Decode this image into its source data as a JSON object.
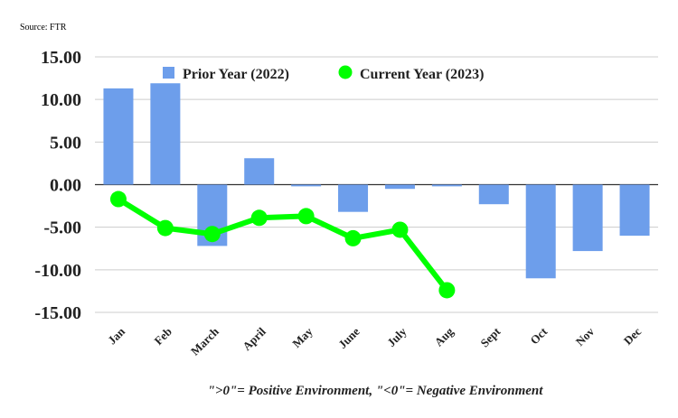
{
  "source": "Source: FTR",
  "footnote": "\">0\"= Positive Environment, \"<0\"= Negative Environment",
  "colors": {
    "bar": "#6d9eeb",
    "line": "#00ff00",
    "grid": "#cccccc",
    "axis": "#333333"
  },
  "chart_data": {
    "type": "bar",
    "categories": [
      "Jan",
      "Feb",
      "March",
      "April",
      "May",
      "June",
      "July",
      "Aug",
      "Sept",
      "Oct",
      "Nov",
      "Dec"
    ],
    "ylim": [
      -15,
      15
    ],
    "yticks": [
      15,
      10,
      5,
      0,
      -5,
      -10,
      -15
    ],
    "ytick_labels": [
      "15.00",
      "10.00",
      "5.00",
      "0.00",
      "-5.00",
      "-10.00",
      "-15.00"
    ],
    "legend_position": "top-center",
    "grid": true,
    "series": [
      {
        "name": "Prior Year (2022)",
        "type": "bar",
        "values": [
          11.3,
          11.9,
          -7.2,
          3.1,
          -0.2,
          -3.2,
          -0.5,
          -0.2,
          -2.3,
          -11.0,
          -7.8,
          -6.0
        ]
      },
      {
        "name": "Current Year (2023)",
        "type": "line",
        "values": [
          -1.7,
          -5.1,
          -5.8,
          -3.9,
          -3.7,
          -6.3,
          -5.3,
          -12.4,
          null,
          null,
          null,
          null
        ]
      }
    ]
  }
}
